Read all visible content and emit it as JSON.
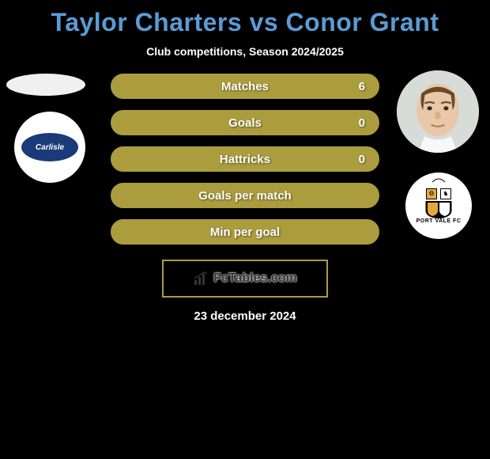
{
  "title": "Taylor Charters vs Conor Grant",
  "title_color": "#5b9bd5",
  "title_fontsize": 32,
  "subtitle": "Club competitions, Season 2024/2025",
  "subtitle_color": "#ffffff",
  "subtitle_fontsize": 14,
  "background_color": "#000000",
  "bars": {
    "border_color": "#ab9d3e",
    "fill_color": "#ab9d3e",
    "empty_fill": "transparent",
    "label_color": "#ffffff",
    "label_fontsize": 15,
    "height": 32,
    "border_radius": 16,
    "gap": 14
  },
  "stats": [
    {
      "label": "Matches",
      "left_value": "",
      "right_value": "6",
      "filled": true
    },
    {
      "label": "Goals",
      "left_value": "",
      "right_value": "0",
      "filled": true
    },
    {
      "label": "Hattricks",
      "left_value": "",
      "right_value": "0",
      "filled": true
    },
    {
      "label": "Goals per match",
      "left_value": "",
      "right_value": "",
      "filled": true
    },
    {
      "label": "Min per goal",
      "left_value": "",
      "right_value": "",
      "filled": true
    }
  ],
  "left_player": {
    "name": "Taylor Charters",
    "club_name": "Carlisle",
    "club_badge_bg": "#ffffff",
    "club_inner_bg": "#1a3a7a",
    "avatar_placeholder_color": "#f0f0f0"
  },
  "right_player": {
    "name": "Conor Grant",
    "club_name": "PORT VALE FC",
    "club_badge_bg": "#ffffff",
    "club_badge_border": "#000000",
    "avatar_bg": "#e8d8c8"
  },
  "fctables": {
    "text": "FcTables.com",
    "border_color": "#ab9d3e",
    "text_color": "#333333",
    "icon_color": "#333333"
  },
  "date": "23 december 2024",
  "date_color": "#ffffff",
  "date_fontsize": 15
}
